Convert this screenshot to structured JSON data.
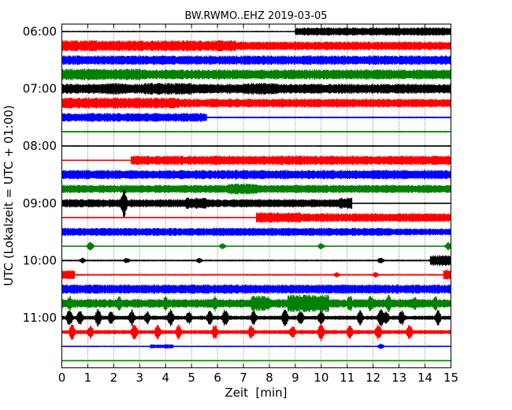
{
  "chart_data": {
    "type": "line",
    "title": "BW.RWMO..EHZ 2019-03-05",
    "xlabel": "Zeit  [min]",
    "ylabel": "UTC (Lokalzeit = UTC + 01:00)",
    "xlim": [
      0,
      15
    ],
    "x_ticks": [
      "0",
      "1",
      "2",
      "3",
      "4",
      "5",
      "6",
      "7",
      "8",
      "9",
      "10",
      "11",
      "12",
      "13",
      "14",
      "15"
    ],
    "y_ticks": [
      "06:00",
      "07:00",
      "08:00",
      "09:00",
      "10:00",
      "11:00"
    ],
    "grid": true,
    "colors": [
      "#000000",
      "#ff0000",
      "#0000ff",
      "#008000"
    ],
    "trace_interval_min": 15,
    "series": [
      {
        "start": "06:00",
        "color": "#000000",
        "base": 0.1,
        "segments": [
          [
            9.0,
            15,
            0.7
          ]
        ]
      },
      {
        "start": "06:15",
        "color": "#ff0000",
        "base": 0.75,
        "segments": [
          [
            0,
            6.7,
            0.95
          ]
        ]
      },
      {
        "start": "06:30",
        "color": "#0000ff",
        "base": 0.8,
        "segments": []
      },
      {
        "start": "06:45",
        "color": "#008000",
        "base": 0.85,
        "segments": [
          [
            0,
            3.0,
            1.0
          ]
        ]
      },
      {
        "start": "07:00",
        "color": "#000000",
        "base": 0.85,
        "segments": [
          [
            1.7,
            2.5,
            1.0
          ],
          [
            3.2,
            5.0,
            1.0
          ],
          [
            7.0,
            8.3,
            1.0
          ]
        ]
      },
      {
        "start": "07:15",
        "color": "#ff0000",
        "base": 0.75,
        "segments": [
          [
            0,
            4.5,
            0.95
          ]
        ]
      },
      {
        "start": "07:30",
        "color": "#0000ff",
        "base": 0.15,
        "segments": [
          [
            0,
            5.6,
            0.75
          ]
        ]
      },
      {
        "start": "07:45",
        "color": "#008000",
        "base": 0.12,
        "segments": []
      },
      {
        "start": "08:00",
        "color": "#000000",
        "base": 0.12,
        "segments": []
      },
      {
        "start": "08:15",
        "color": "#ff0000",
        "base": 0.1,
        "segments": [
          [
            2.65,
            15,
            0.8
          ]
        ]
      },
      {
        "start": "08:30",
        "color": "#0000ff",
        "base": 0.8,
        "segments": []
      },
      {
        "start": "08:45",
        "color": "#008000",
        "base": 0.7,
        "segments": [
          [
            6.4,
            7.5,
            0.95
          ]
        ]
      },
      {
        "start": "09:00",
        "color": "#000000",
        "base": 0.1,
        "segments": [
          [
            0,
            11.2,
            0.7
          ],
          [
            4.8,
            5.6,
            0.95
          ],
          [
            10.7,
            11.2,
            0.95
          ]
        ],
        "spikes": [
          [
            2.4,
            2.5
          ]
        ]
      },
      {
        "start": "09:15",
        "color": "#ff0000",
        "base": 0.1,
        "segments": [
          [
            7.5,
            15,
            0.75
          ],
          [
            7.5,
            9.2,
            0.9
          ]
        ]
      },
      {
        "start": "09:30",
        "color": "#0000ff",
        "base": 0.6,
        "segments": [
          [
            0,
            12.6,
            0.7
          ]
        ]
      },
      {
        "start": "09:45",
        "color": "#008000",
        "base": 0.1,
        "segments": [],
        "spikes": [
          [
            1.1,
            0.8
          ],
          [
            6.2,
            0.6
          ],
          [
            10.0,
            0.6
          ],
          [
            14.9,
            0.7
          ]
        ]
      },
      {
        "start": "10:00",
        "color": "#000000",
        "base": 0.15,
        "segments": [
          [
            14.2,
            15,
            0.9
          ]
        ],
        "spikes": [
          [
            0.8,
            0.5
          ],
          [
            2.5,
            0.5
          ],
          [
            5.3,
            0.5
          ],
          [
            12.3,
            0.6
          ]
        ]
      },
      {
        "start": "10:15",
        "color": "#ff0000",
        "base": 0.15,
        "segments": [
          [
            0,
            0.5,
            0.8
          ],
          [
            14.7,
            15,
            0.9
          ]
        ],
        "spikes": [
          [
            10.6,
            0.5
          ],
          [
            12.1,
            0.5
          ]
        ]
      },
      {
        "start": "10:30",
        "color": "#0000ff",
        "base": 0.8,
        "segments": []
      },
      {
        "start": "10:45",
        "color": "#008000",
        "base": 0.75,
        "segments": [
          [
            7.3,
            8.0,
            1.3
          ],
          [
            8.7,
            10.3,
            1.5
          ]
        ],
        "spikes": [
          [
            0.3,
            1.4
          ],
          [
            2.2,
            1.3
          ],
          [
            4.0,
            1.3
          ],
          [
            5.9,
            1.4
          ],
          [
            9.5,
            1.4
          ],
          [
            11.1,
            1.5
          ],
          [
            11.9,
            1.6
          ],
          [
            12.6,
            1.5
          ],
          [
            13.6,
            1.3
          ],
          [
            14.4,
            1.3
          ]
        ]
      },
      {
        "start": "11:00",
        "color": "#000000",
        "base": 0.35,
        "segments": [],
        "spikes": [
          [
            0.3,
            1.6
          ],
          [
            0.7,
            1.3
          ],
          [
            1.4,
            1.6
          ],
          [
            1.9,
            1.2
          ],
          [
            2.7,
            1.4
          ],
          [
            3.3,
            1.2
          ],
          [
            4.2,
            1.5
          ],
          [
            4.9,
            1.2
          ],
          [
            5.7,
            1.3
          ],
          [
            6.3,
            1.6
          ],
          [
            7.4,
            1.3
          ],
          [
            8.6,
            1.6
          ],
          [
            9.2,
            1.3
          ],
          [
            10.0,
            1.5
          ],
          [
            11.5,
            1.3
          ],
          [
            12.3,
            1.6
          ],
          [
            12.5,
            1.3
          ],
          [
            13.1,
            1.4
          ],
          [
            14.5,
            1.4
          ]
        ]
      },
      {
        "start": "11:15",
        "color": "#ff0000",
        "base": 0.35,
        "segments": [],
        "spikes": [
          [
            0.4,
            1.4
          ],
          [
            1.1,
            1.2
          ],
          [
            2.8,
            1.5
          ],
          [
            3.7,
            1.3
          ],
          [
            4.5,
            1.3
          ],
          [
            5.9,
            1.3
          ],
          [
            7.3,
            1.2
          ],
          [
            8.9,
            1.2
          ],
          [
            10.0,
            1.6
          ],
          [
            11.1,
            1.2
          ],
          [
            12.2,
            1.4
          ],
          [
            13.4,
            1.3
          ]
        ]
      },
      {
        "start": "11:30",
        "color": "#0000ff",
        "base": 0.12,
        "segments": [
          [
            3.4,
            4.3,
            0.35
          ]
        ],
        "spikes": [
          [
            12.3,
            0.5
          ]
        ]
      },
      {
        "start": "11:45",
        "color": "#008000",
        "base": 0.08,
        "segments": []
      }
    ]
  }
}
